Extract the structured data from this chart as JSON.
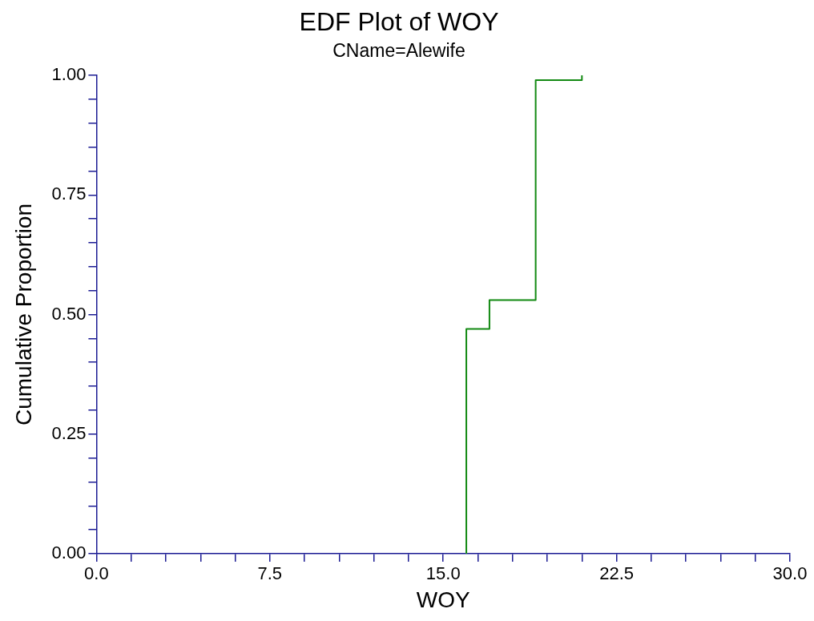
{
  "chart_data": {
    "type": "step",
    "title": "EDF Plot of WOY",
    "subtitle": "CName=Alewife",
    "xlabel": "WOY",
    "ylabel": "Cumulative Proportion",
    "x": [
      16,
      16,
      17,
      19,
      21
    ],
    "series": [
      {
        "color": "#138a13",
        "values": [
          0,
          0.47,
          0.53,
          0.99,
          1.0
        ]
      }
    ],
    "xlim": [
      0,
      30
    ],
    "xticks": [
      {
        "value": 0,
        "label": "0.0"
      },
      {
        "value": 1.5,
        "label": null
      },
      {
        "value": 3,
        "label": null
      },
      {
        "value": 4.5,
        "label": null
      },
      {
        "value": 6,
        "label": null
      },
      {
        "value": 7.5,
        "label": "7.5"
      },
      {
        "value": 9,
        "label": null
      },
      {
        "value": 10.5,
        "label": null
      },
      {
        "value": 12,
        "label": null
      },
      {
        "value": 13.5,
        "label": null
      },
      {
        "value": 15,
        "label": "15.0"
      },
      {
        "value": 16.5,
        "label": null
      },
      {
        "value": 18,
        "label": null
      },
      {
        "value": 19.5,
        "label": null
      },
      {
        "value": 21,
        "label": null
      },
      {
        "value": 22.5,
        "label": "22.5"
      },
      {
        "value": 24,
        "label": null
      },
      {
        "value": 25.5,
        "label": null
      },
      {
        "value": 27,
        "label": null
      },
      {
        "value": 28.5,
        "label": null
      },
      {
        "value": 30,
        "label": "30.0"
      }
    ],
    "ylim": [
      0,
      1
    ],
    "yticks": [
      {
        "value": 0,
        "label": "0.00"
      },
      {
        "value": 0.05,
        "label": null
      },
      {
        "value": 0.1,
        "label": null
      },
      {
        "value": 0.15,
        "label": null
      },
      {
        "value": 0.2,
        "label": null
      },
      {
        "value": 0.25,
        "label": "0.25"
      },
      {
        "value": 0.3,
        "label": null
      },
      {
        "value": 0.35,
        "label": null
      },
      {
        "value": 0.4,
        "label": null
      },
      {
        "value": 0.45,
        "label": null
      },
      {
        "value": 0.5,
        "label": "0.50"
      },
      {
        "value": 0.55,
        "label": null
      },
      {
        "value": 0.6,
        "label": null
      },
      {
        "value": 0.65,
        "label": null
      },
      {
        "value": 0.7,
        "label": null
      },
      {
        "value": 0.75,
        "label": "0.75"
      },
      {
        "value": 0.8,
        "label": null
      },
      {
        "value": 0.85,
        "label": null
      },
      {
        "value": 0.9,
        "label": null
      },
      {
        "value": 0.95,
        "label": null
      },
      {
        "value": 1,
        "label": "1.00"
      }
    ],
    "grid": false,
    "legend": false,
    "marker": "none",
    "line_style": "solid"
  }
}
